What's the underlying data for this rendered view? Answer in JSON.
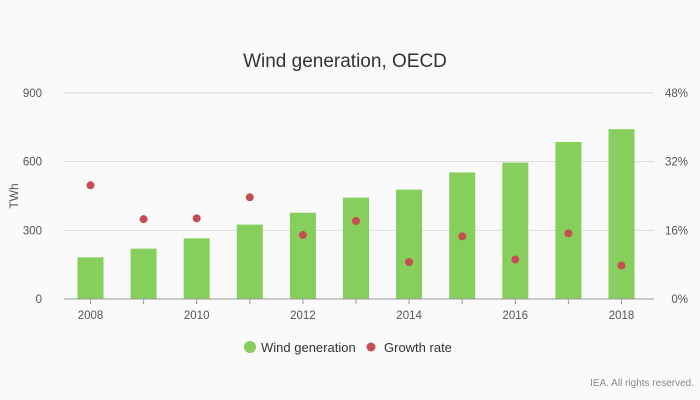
{
  "chart_data": {
    "type": "bar",
    "title": "Wind generation, OECD",
    "ylabel": "TWh",
    "y2label": "",
    "xlabel": "",
    "x": [
      2008,
      2009,
      2010,
      2011,
      2012,
      2013,
      2014,
      2015,
      2016,
      2017,
      2018
    ],
    "x_tick_labels": [
      "2008",
      "2010",
      "2012",
      "2014",
      "2016",
      "2018"
    ],
    "ylim": [
      0,
      900
    ],
    "y_ticks": [
      0,
      300,
      600,
      900
    ],
    "y_tick_labels": [
      "0",
      "300",
      "600",
      "900"
    ],
    "y2lim": [
      0,
      48
    ],
    "y2_ticks": [
      0,
      16,
      32,
      48
    ],
    "y2_tick_labels": [
      "0%",
      "16%",
      "32%",
      "48%"
    ],
    "grid": true,
    "legend_position": "bottom",
    "series": [
      {
        "name": "Wind generation",
        "type": "bar",
        "axis": "left",
        "color": "#86cf5c",
        "values": [
          182,
          220,
          265,
          325,
          377,
          443,
          478,
          553,
          596,
          686,
          742
        ]
      },
      {
        "name": "Growth rate",
        "type": "scatter",
        "axis": "right",
        "unit": "%",
        "color": "#c44e52",
        "values": [
          26.5,
          18.6,
          18.8,
          23.7,
          14.9,
          18.2,
          8.6,
          14.6,
          9.2,
          15.3,
          7.8
        ]
      }
    ],
    "credit": "IEA. All rights reserved."
  }
}
